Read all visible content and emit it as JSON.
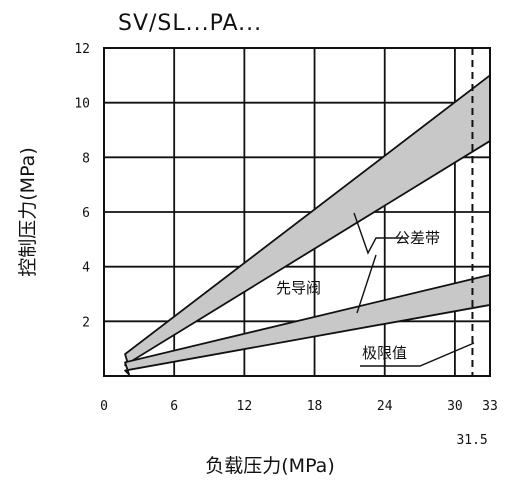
{
  "chart_data": {
    "type": "area",
    "title": "SV/SL...PA...",
    "xlabel": "负载压力(MPa)",
    "ylabel": "控制压力(MPa)",
    "xlim": [
      0,
      33
    ],
    "ylim": [
      0,
      12
    ],
    "x_ticks": [
      "0",
      "6",
      "12",
      "18",
      "24",
      "30",
      "33"
    ],
    "y_ticks": [
      "2",
      "4",
      "6",
      "8",
      "10",
      "12"
    ],
    "grid": true,
    "series": [
      {
        "name": "先导阀",
        "x": [
          1.8,
          33
        ],
        "upper": [
          0.8,
          11.0
        ],
        "lower": [
          0.4,
          8.6
        ]
      },
      {
        "x": [
          1.8,
          33
        ],
        "upper": [
          0.5,
          3.7
        ],
        "lower": [
          0.2,
          2.6
        ]
      }
    ],
    "reference_line": {
      "x": 31.5,
      "label": "31.5"
    },
    "annotations": {
      "tolerance_band": "公差带",
      "pilot_valve": "先导阀",
      "limit_value": "极限值"
    }
  }
}
